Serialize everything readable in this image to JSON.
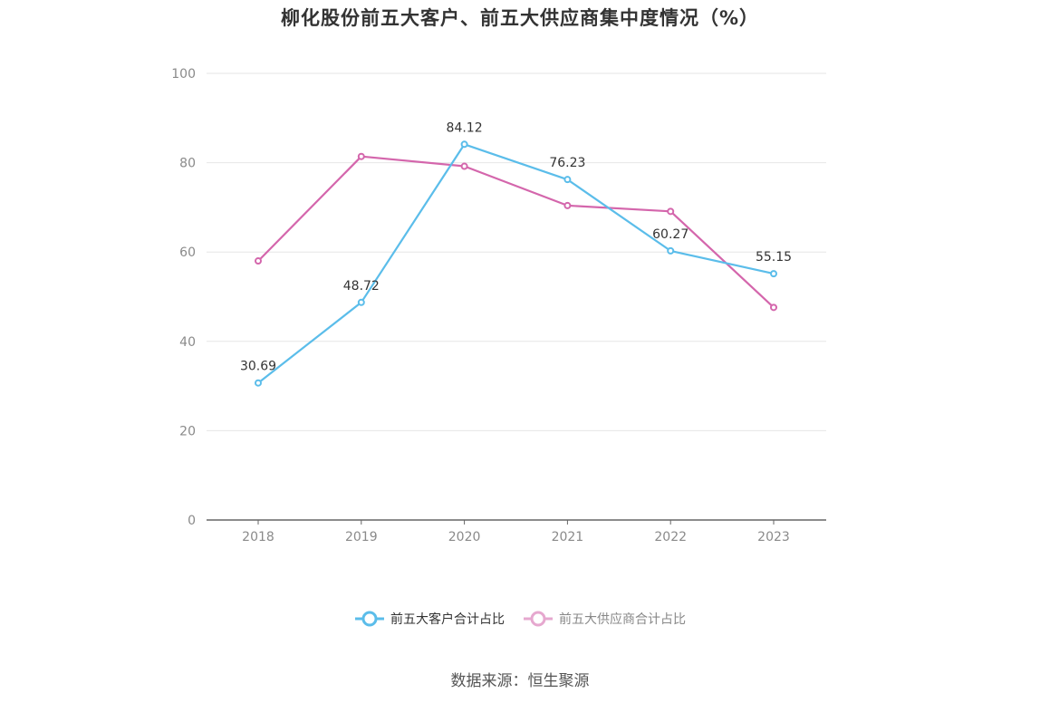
{
  "colors": {
    "customers": "#5bbdea",
    "suppliers": "#d466ac",
    "grid": "#e6e6e6",
    "axis": "#666666"
  },
  "source_text": "数据来源：恒生聚源",
  "chart_data": {
    "type": "line",
    "title": "柳化股份前五大客户、前五大供应商集中度情况（%）",
    "xlabel": "",
    "ylabel": "",
    "categories": [
      "2018",
      "2019",
      "2020",
      "2021",
      "2022",
      "2023"
    ],
    "ylim": [
      0,
      100
    ],
    "yticks": [
      0,
      20,
      40,
      60,
      80,
      100
    ],
    "grid": true,
    "legend_position": "bottom",
    "series": [
      {
        "name": "前五大客户合计占比",
        "values": [
          30.69,
          48.72,
          84.12,
          76.23,
          60.27,
          55.15
        ],
        "data_labels": [
          "30.69",
          "48.72",
          "84.12",
          "76.23",
          "60.27",
          "55.15"
        ],
        "color": "#5bbdea"
      },
      {
        "name": "前五大供应商合计占比",
        "values": [
          58.0,
          81.4,
          79.2,
          70.4,
          69.1,
          47.6
        ],
        "color": "#d466ac"
      }
    ]
  }
}
